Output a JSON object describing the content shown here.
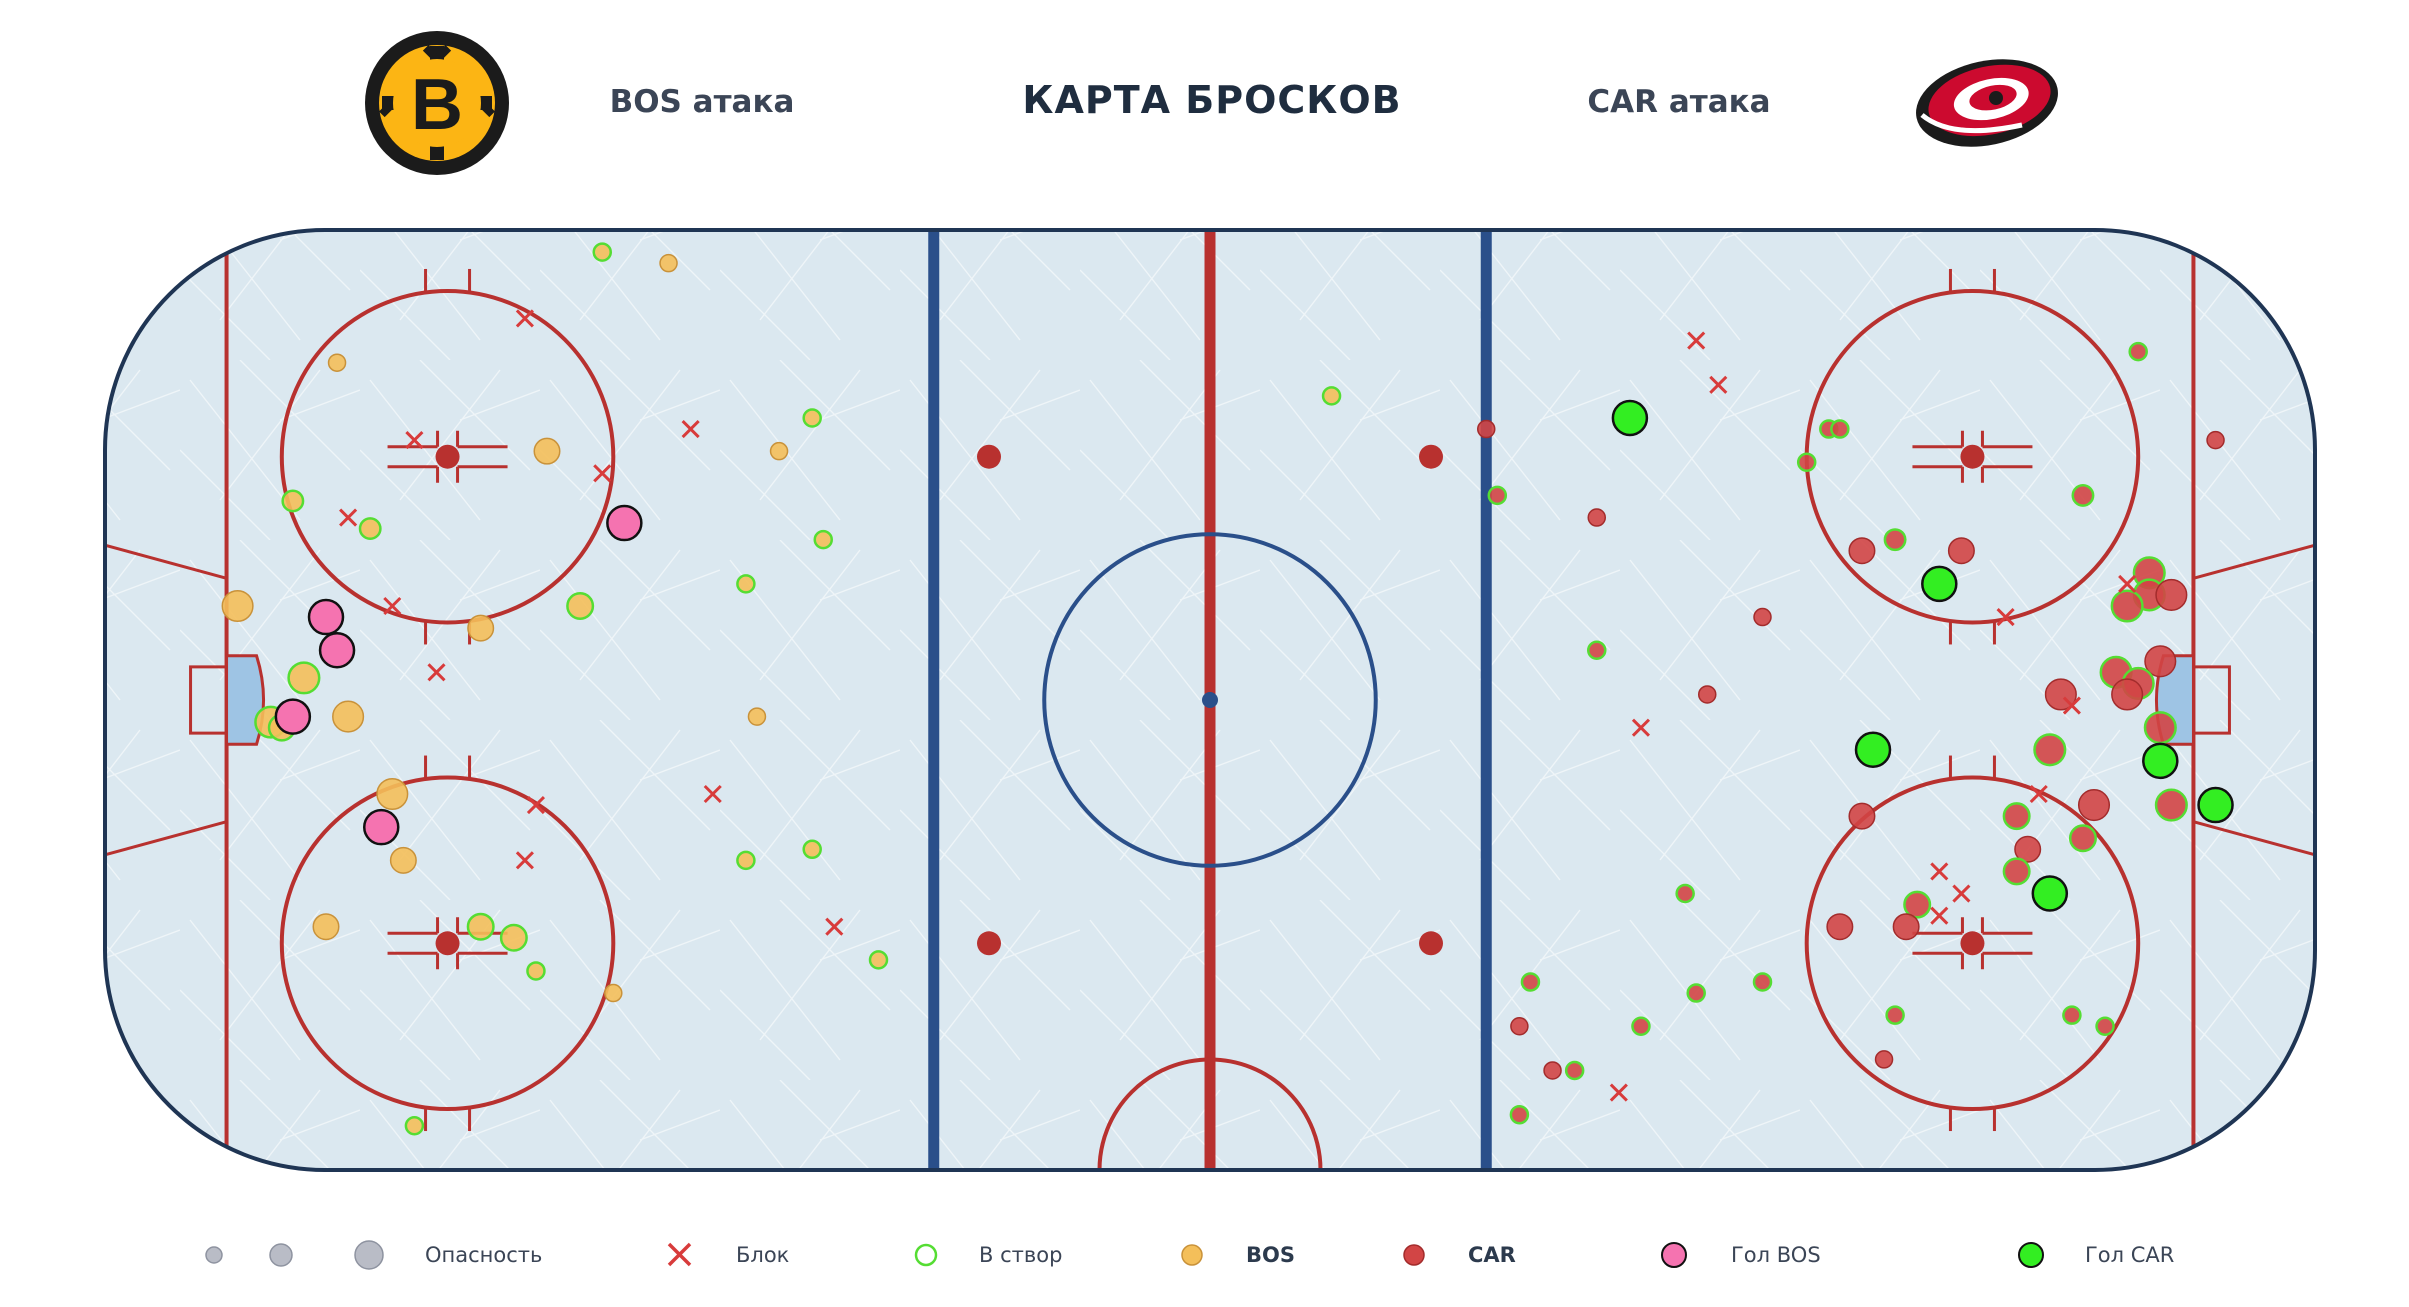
{
  "header": {
    "title": "КАРТА БРОСКОВ",
    "home_attack": "BOS атака",
    "away_attack": "CAR атака",
    "home_logo_icon": "bruins-logo-icon",
    "away_logo_icon": "hurricanes-logo-icon"
  },
  "colors": {
    "bos_shot": "#f4bf5a",
    "car_shot": "#d24545",
    "on_target_ring": "#55dd33",
    "block": "#d83b3b",
    "bos_goal": "#f573b0",
    "car_goal": "#33ee22",
    "red_line": "#b8312f",
    "blue_line": "#2a4f8a",
    "ice": "#dbe8f0"
  },
  "legend": {
    "danger_label": "Опасность",
    "block_label": "Блок",
    "on_target_label": "В створ",
    "bos_label": "BOS",
    "car_label": "CAR",
    "bos_goal_label": "Гол BOS",
    "car_goal_label": "Гол CAR"
  },
  "chart_data": {
    "type": "scatter",
    "title": "КАРТА БРОСКОВ",
    "xlim": [
      -100,
      100
    ],
    "ylim": [
      -42.5,
      42.5
    ],
    "series": [
      {
        "name": "BOS",
        "points": [
          {
            "x": -55,
            "y": 40.5,
            "r": 1,
            "on_target": true
          },
          {
            "x": -49,
            "y": 39.5,
            "r": 1,
            "on_target": false
          },
          {
            "x": -79,
            "y": 30.5,
            "r": 1,
            "on_target": false
          },
          {
            "x": -36,
            "y": 25.5,
            "r": 1,
            "on_target": true
          },
          {
            "x": -60,
            "y": 22.5,
            "r": 1.5,
            "on_target": false
          },
          {
            "x": -39,
            "y": 22.5,
            "r": 1,
            "on_target": false
          },
          {
            "x": -83,
            "y": 18,
            "r": 1.2,
            "on_target": true
          },
          {
            "x": -76,
            "y": 15.5,
            "r": 1.2,
            "on_target": true
          },
          {
            "x": -35,
            "y": 14.5,
            "r": 1,
            "on_target": true
          },
          {
            "x": -42,
            "y": 10.5,
            "r": 1,
            "on_target": true
          },
          {
            "x": -88,
            "y": 8.5,
            "r": 1.8,
            "on_target": false
          },
          {
            "x": -57,
            "y": 8.5,
            "r": 1.5,
            "on_target": true
          },
          {
            "x": -66,
            "y": 6.5,
            "r": 1.5,
            "on_target": false
          },
          {
            "x": -82,
            "y": 2,
            "r": 1.8,
            "on_target": true
          },
          {
            "x": -85,
            "y": -2,
            "r": 1.8,
            "on_target": true
          },
          {
            "x": -78,
            "y": -1.5,
            "r": 1.8,
            "on_target": false
          },
          {
            "x": -41,
            "y": -1.5,
            "r": 1,
            "on_target": false
          },
          {
            "x": -84,
            "y": -2.5,
            "r": 1.5,
            "on_target": true
          },
          {
            "x": -74,
            "y": -8.5,
            "r": 1.8,
            "on_target": false
          },
          {
            "x": -36,
            "y": -13.5,
            "r": 1,
            "on_target": true
          },
          {
            "x": -42,
            "y": -14.5,
            "r": 1,
            "on_target": true
          },
          {
            "x": -73,
            "y": -14.5,
            "r": 1.5,
            "on_target": false
          },
          {
            "x": -80,
            "y": -20.5,
            "r": 1.5,
            "on_target": false
          },
          {
            "x": -66,
            "y": -20.5,
            "r": 1.5,
            "on_target": true
          },
          {
            "x": -63,
            "y": -21.5,
            "r": 1.5,
            "on_target": true
          },
          {
            "x": -61,
            "y": -24.5,
            "r": 1,
            "on_target": true
          },
          {
            "x": -54,
            "y": -26.5,
            "r": 1,
            "on_target": false
          },
          {
            "x": -72,
            "y": -38.5,
            "r": 1,
            "on_target": true
          },
          {
            "x": -30,
            "y": -23.5,
            "r": 1,
            "on_target": true
          },
          {
            "x": 11,
            "y": 27.5,
            "r": 1,
            "on_target": true
          }
        ]
      },
      {
        "name": "CAR",
        "points": [
          {
            "x": 25,
            "y": 24.5,
            "r": 1,
            "on_target": false
          },
          {
            "x": 56,
            "y": 24.5,
            "r": 1,
            "on_target": true
          },
          {
            "x": 57,
            "y": 24.5,
            "r": 1,
            "on_target": true
          },
          {
            "x": 84,
            "y": 31.5,
            "r": 1,
            "on_target": true
          },
          {
            "x": 91,
            "y": 23.5,
            "r": 1,
            "on_target": false
          },
          {
            "x": 54,
            "y": 21.5,
            "r": 1,
            "on_target": true
          },
          {
            "x": 26,
            "y": 18.5,
            "r": 1,
            "on_target": true
          },
          {
            "x": 35,
            "y": 16.5,
            "r": 1,
            "on_target": false
          },
          {
            "x": 79,
            "y": 18.5,
            "r": 1.2,
            "on_target": true
          },
          {
            "x": 59,
            "y": 13.5,
            "r": 1.5,
            "on_target": false
          },
          {
            "x": 62,
            "y": 14.5,
            "r": 1.2,
            "on_target": true
          },
          {
            "x": 68,
            "y": 13.5,
            "r": 1.5,
            "on_target": false
          },
          {
            "x": 85,
            "y": 11.5,
            "r": 1.8,
            "on_target": true
          },
          {
            "x": 85,
            "y": 9.5,
            "r": 1.8,
            "on_target": true
          },
          {
            "x": 87,
            "y": 9.5,
            "r": 1.8,
            "on_target": false
          },
          {
            "x": 83,
            "y": 8.5,
            "r": 1.8,
            "on_target": true
          },
          {
            "x": 50,
            "y": 7.5,
            "r": 1,
            "on_target": false
          },
          {
            "x": 35,
            "y": 4.5,
            "r": 1,
            "on_target": true
          },
          {
            "x": 86,
            "y": 3.5,
            "r": 1.8,
            "on_target": false
          },
          {
            "x": 82,
            "y": 2.5,
            "r": 1.8,
            "on_target": true
          },
          {
            "x": 84,
            "y": 1.5,
            "r": 1.8,
            "on_target": true
          },
          {
            "x": 83,
            "y": 0.5,
            "r": 1.8,
            "on_target": false
          },
          {
            "x": 77,
            "y": 0.5,
            "r": 1.8,
            "on_target": false
          },
          {
            "x": 45,
            "y": 0.5,
            "r": 1,
            "on_target": false
          },
          {
            "x": 86,
            "y": -2.5,
            "r": 1.8,
            "on_target": true
          },
          {
            "x": 76,
            "y": -4.5,
            "r": 1.8,
            "on_target": true
          },
          {
            "x": 80,
            "y": -9.5,
            "r": 1.8,
            "on_target": false
          },
          {
            "x": 87,
            "y": -9.5,
            "r": 1.8,
            "on_target": true
          },
          {
            "x": 59,
            "y": -10.5,
            "r": 1.5,
            "on_target": false
          },
          {
            "x": 73,
            "y": -10.5,
            "r": 1.5,
            "on_target": true
          },
          {
            "x": 79,
            "y": -12.5,
            "r": 1.5,
            "on_target": true
          },
          {
            "x": 74,
            "y": -13.5,
            "r": 1.5,
            "on_target": false
          },
          {
            "x": 73,
            "y": -15.5,
            "r": 1.5,
            "on_target": true
          },
          {
            "x": 43,
            "y": -17.5,
            "r": 1,
            "on_target": true
          },
          {
            "x": 64,
            "y": -18.5,
            "r": 1.5,
            "on_target": true
          },
          {
            "x": 57,
            "y": -20.5,
            "r": 1.5,
            "on_target": false
          },
          {
            "x": 63,
            "y": -20.5,
            "r": 1.5,
            "on_target": false
          },
          {
            "x": 29,
            "y": -25.5,
            "r": 1,
            "on_target": true
          },
          {
            "x": 44,
            "y": -26.5,
            "r": 1,
            "on_target": true
          },
          {
            "x": 50,
            "y": -25.5,
            "r": 1,
            "on_target": true
          },
          {
            "x": 28,
            "y": -29.5,
            "r": 1,
            "on_target": false
          },
          {
            "x": 39,
            "y": -29.5,
            "r": 1,
            "on_target": true
          },
          {
            "x": 62,
            "y": -28.5,
            "r": 1,
            "on_target": true
          },
          {
            "x": 78,
            "y": -28.5,
            "r": 1,
            "on_target": true
          },
          {
            "x": 81,
            "y": -29.5,
            "r": 1,
            "on_target": true
          },
          {
            "x": 31,
            "y": -33.5,
            "r": 1,
            "on_target": false
          },
          {
            "x": 33,
            "y": -33.5,
            "r": 1,
            "on_target": true
          },
          {
            "x": 61,
            "y": -32.5,
            "r": 1,
            "on_target": false
          },
          {
            "x": 28,
            "y": -37.5,
            "r": 1,
            "on_target": true
          }
        ]
      },
      {
        "name": "Гол BOS",
        "points": [
          {
            "x": -53,
            "y": 16,
            "r": 2
          },
          {
            "x": -80,
            "y": 7.5,
            "r": 2
          },
          {
            "x": -79,
            "y": 4.5,
            "r": 2
          },
          {
            "x": -83,
            "y": -1.5,
            "r": 2
          },
          {
            "x": -75,
            "y": -11.5,
            "r": 2
          }
        ]
      },
      {
        "name": "Гол CAR",
        "points": [
          {
            "x": 38,
            "y": 25.5,
            "r": 2
          },
          {
            "x": 66,
            "y": 10.5,
            "r": 2
          },
          {
            "x": 60,
            "y": -4.5,
            "r": 2
          },
          {
            "x": 86,
            "y": -5.5,
            "r": 2
          },
          {
            "x": 91,
            "y": -9.5,
            "r": 2
          },
          {
            "x": 76,
            "y": -17.5,
            "r": 2
          }
        ]
      },
      {
        "name": "Блок",
        "points": [
          {
            "x": -62,
            "y": 34.5
          },
          {
            "x": -72,
            "y": 23.5
          },
          {
            "x": -47,
            "y": 24.5
          },
          {
            "x": -55,
            "y": 20.5
          },
          {
            "x": -78,
            "y": 16.5
          },
          {
            "x": -74,
            "y": 8.5
          },
          {
            "x": -70,
            "y": 2.5
          },
          {
            "x": -61,
            "y": -9.5
          },
          {
            "x": -45,
            "y": -8.5
          },
          {
            "x": -62,
            "y": -14.5
          },
          {
            "x": -34,
            "y": -20.5
          },
          {
            "x": 44,
            "y": 32.5
          },
          {
            "x": 46,
            "y": 28.5
          },
          {
            "x": 83,
            "y": 10.5
          },
          {
            "x": 72,
            "y": 7.5
          },
          {
            "x": 39,
            "y": -2.5
          },
          {
            "x": 78,
            "y": -0.5
          },
          {
            "x": 75,
            "y": -8.5
          },
          {
            "x": 66,
            "y": -15.5
          },
          {
            "x": 68,
            "y": -17.5
          },
          {
            "x": 66,
            "y": -19.5
          },
          {
            "x": 37,
            "y": -35.5
          }
        ]
      }
    ],
    "rink": {
      "goal_lines": [
        -89,
        89
      ],
      "blue_lines": [
        -25,
        25
      ],
      "center_line": 0,
      "faceoff_spots": [
        [
          -69,
          22
        ],
        [
          -69,
          -22
        ],
        [
          69,
          22
        ],
        [
          69,
          -22
        ],
        [
          -20,
          22
        ],
        [
          -20,
          -22
        ],
        [
          20,
          22
        ],
        [
          20,
          -22
        ],
        [
          0,
          0
        ]
      ],
      "faceoff_circles": [
        [
          -69,
          22
        ],
        [
          -69,
          -22
        ],
        [
          69,
          22
        ],
        [
          69,
          -22
        ],
        [
          0,
          0
        ]
      ]
    }
  }
}
